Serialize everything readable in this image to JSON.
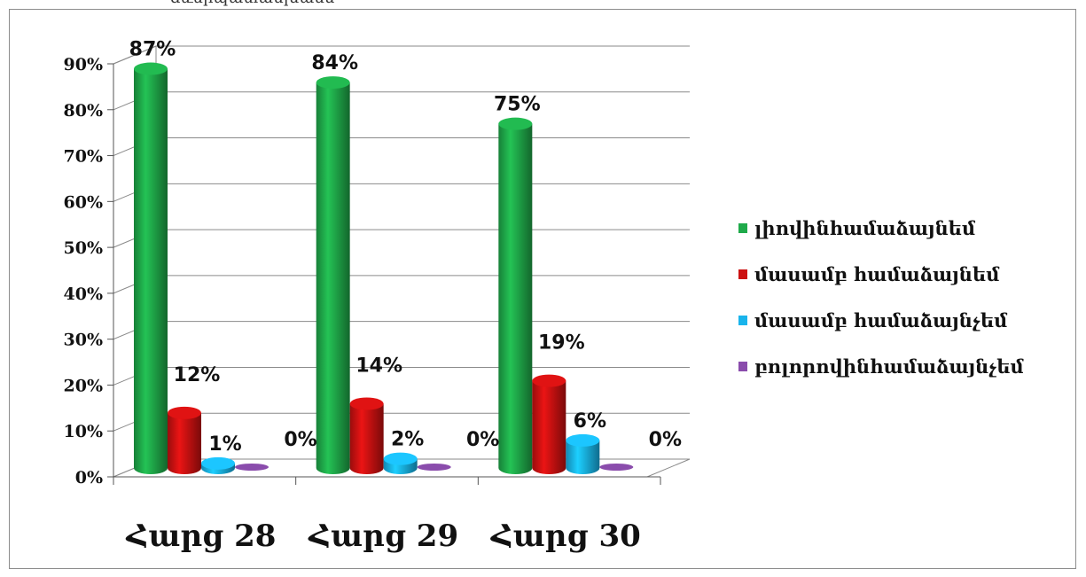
{
  "header_fragment": "ձևերպատասխանս",
  "chart_data": {
    "type": "bar",
    "categories": [
      "Հարց 28",
      "Հարց 29",
      "Հարց 30"
    ],
    "series": [
      {
        "name": "լիովինհամաձայնեմ",
        "color": "#1faa4a",
        "values": [
          87,
          84,
          75
        ]
      },
      {
        "name": "մասամբ համաձայնեմ",
        "color": "#cc1111",
        "values": [
          12,
          14,
          19
        ]
      },
      {
        "name": "մասամբ համաձայնչեմ",
        "color": "#19b4ec",
        "values": [
          1,
          2,
          6
        ]
      },
      {
        "name": "բոլորովինհամաձայնչեմ",
        "color": "#8a4cac",
        "values": [
          0,
          0,
          0
        ]
      }
    ],
    "data_labels": [
      [
        "87%",
        "84%",
        "75%"
      ],
      [
        "12%",
        "14%",
        "19%"
      ],
      [
        "1%",
        "2%",
        "6%"
      ],
      [
        "0%",
        "0%",
        "0%"
      ]
    ],
    "y_ticks": [
      "0%",
      "10%",
      "20%",
      "30%",
      "40%",
      "50%",
      "60%",
      "70%",
      "80%",
      "90%"
    ],
    "ylim": [
      0,
      90
    ],
    "title": "",
    "xlabel": "",
    "ylabel": "",
    "grid": true,
    "legend_position": "right"
  }
}
